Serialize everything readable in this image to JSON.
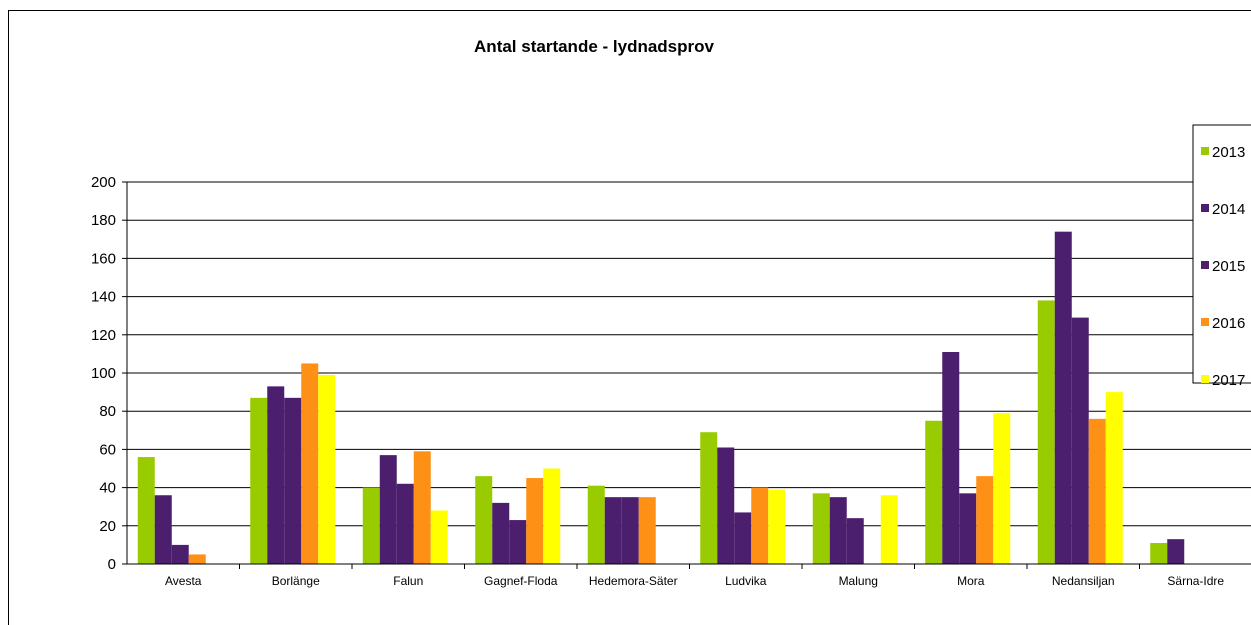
{
  "chart_data": {
    "type": "bar",
    "title": "Antal startande - lydnadsprov",
    "xlabel": "",
    "ylabel": "",
    "ylim": [
      0,
      200
    ],
    "yticks": [
      0,
      20,
      40,
      60,
      80,
      100,
      120,
      140,
      160,
      180,
      200
    ],
    "grid": true,
    "legend_position": "right",
    "categories": [
      "Avesta",
      "Borlänge",
      "Falun",
      "Gagnef-Floda",
      "Hedemora-Säter",
      "Ludvika",
      "Malung",
      "Mora",
      "Nedansiljan",
      "Särna-Idre"
    ],
    "series": [
      {
        "name": "2013",
        "color": "#99cc00",
        "values": [
          56,
          87,
          40,
          46,
          41,
          69,
          37,
          75,
          138,
          11
        ]
      },
      {
        "name": "2014",
        "color": "#4b1e6e",
        "values": [
          36,
          93,
          57,
          32,
          35,
          61,
          35,
          111,
          174,
          13
        ]
      },
      {
        "name": "2015",
        "color": "#4b1e6e",
        "values": [
          10,
          87,
          42,
          23,
          35,
          27,
          24,
          37,
          129,
          0
        ]
      },
      {
        "name": "2016",
        "color": "#ff9016",
        "values": [
          5,
          105,
          59,
          45,
          35,
          40,
          0,
          46,
          76,
          0
        ]
      },
      {
        "name": "2017",
        "color": "#ffff00",
        "values": [
          0,
          99,
          28,
          50,
          0,
          39,
          36,
          79,
          90,
          0
        ]
      }
    ]
  }
}
